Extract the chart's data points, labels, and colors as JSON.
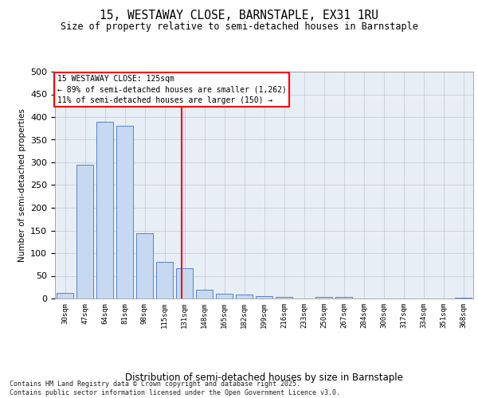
{
  "title1": "15, WESTAWAY CLOSE, BARNSTAPLE, EX31 1RU",
  "title2": "Size of property relative to semi-detached houses in Barnstaple",
  "xlabel": "Distribution of semi-detached houses by size in Barnstaple",
  "ylabel": "Number of semi-detached properties",
  "categories": [
    "30sqm",
    "47sqm",
    "64sqm",
    "81sqm",
    "98sqm",
    "115sqm",
    "131sqm",
    "148sqm",
    "165sqm",
    "182sqm",
    "199sqm",
    "216sqm",
    "233sqm",
    "250sqm",
    "267sqm",
    "284sqm",
    "300sqm",
    "317sqm",
    "334sqm",
    "351sqm",
    "368sqm"
  ],
  "values": [
    13,
    295,
    390,
    380,
    143,
    80,
    66,
    20,
    10,
    8,
    6,
    4,
    0,
    4,
    4,
    0,
    0,
    0,
    0,
    0,
    1
  ],
  "bar_color": "#c6d9f1",
  "bar_edge_color": "#4472c4",
  "vline_x": 5.85,
  "vline_color": "red",
  "annotation_title": "15 WESTAWAY CLOSE: 125sqm",
  "annotation_line1": "← 89% of semi-detached houses are smaller (1,262)",
  "annotation_line2": "11% of semi-detached houses are larger (150) →",
  "ylim": [
    0,
    500
  ],
  "yticks": [
    0,
    50,
    100,
    150,
    200,
    250,
    300,
    350,
    400,
    450,
    500
  ],
  "footer": "Contains HM Land Registry data © Crown copyright and database right 2025.\nContains public sector information licensed under the Open Government Licence v3.0.",
  "bg_color": "#ffffff",
  "plot_bg_color": "#e8eef5"
}
